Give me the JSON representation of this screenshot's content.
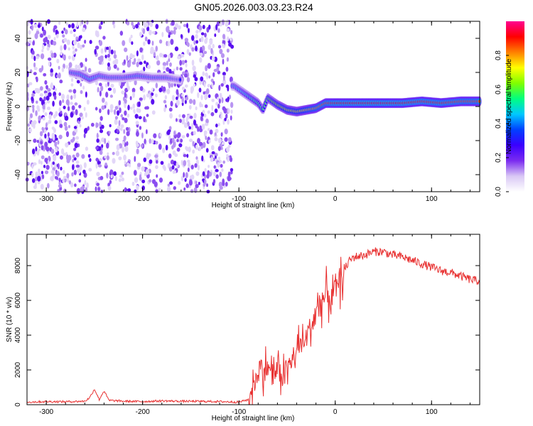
{
  "title": "GN05.2026.003.03.23.R24",
  "chart_data": [
    {
      "type": "heatmap",
      "xlabel": "Height of straight line (km)",
      "ylabel": "Frequency (Hz)",
      "xlim": [
        -320,
        150
      ],
      "ylim": [
        -50,
        50
      ],
      "x_ticks": [
        -300,
        -200,
        -100,
        0,
        100
      ],
      "y_ticks": [
        -40,
        -20,
        0,
        20,
        40
      ],
      "colorbar": {
        "label": "Normalized spectral amplitude",
        "range": [
          0,
          1
        ],
        "ticks": [
          "0.0",
          "0.2",
          "0.4",
          "0.6",
          "0.8"
        ],
        "colormap": [
          "#ffffff",
          "#d9c8f5",
          "#7b2cf0",
          "#3a00ff",
          "#0040ff",
          "#00c8ff",
          "#00ff80",
          "#80ff00",
          "#ffff00",
          "#ff8000",
          "#ff0000",
          "#ff0090"
        ]
      },
      "ridge": {
        "x": [
          -275,
          -265,
          -255,
          -245,
          -235,
          -220,
          -205,
          -190,
          -175,
          -165,
          -105,
          -100,
          -90,
          -80,
          -75,
          -70,
          -60,
          -50,
          -40,
          -30,
          -20,
          -10,
          0,
          10,
          30,
          50,
          70,
          90,
          110,
          130,
          150
        ],
        "frequency": [
          20,
          19,
          16,
          18,
          17,
          17,
          18,
          17,
          17,
          16,
          12,
          10,
          6,
          2,
          -2,
          5,
          1,
          -2,
          -3,
          -2,
          -1,
          2,
          2,
          2,
          2,
          2,
          2,
          3,
          2,
          3,
          3
        ],
        "amplitude": [
          0.35,
          0.4,
          0.45,
          0.4,
          0.35,
          0.35,
          0.4,
          0.35,
          0.35,
          0.3,
          0.4,
          0.45,
          0.5,
          0.55,
          0.55,
          0.6,
          0.65,
          0.7,
          0.7,
          0.75,
          0.8,
          0.85,
          0.9,
          0.9,
          0.92,
          0.92,
          0.9,
          0.88,
          0.88,
          0.85,
          0.85
        ]
      },
      "noise_region_x": [
        -320,
        -107
      ]
    },
    {
      "type": "line",
      "xlabel": "Height of straight line (km)",
      "ylabel": "SNR (10 * v/v)",
      "xlim": [
        -320,
        150
      ],
      "ylim": [
        0,
        9800
      ],
      "x_ticks": [
        -300,
        -200,
        -100,
        0,
        100
      ],
      "y_ticks": [
        0,
        2000,
        4000,
        6000,
        8000
      ],
      "series": [
        {
          "color": "#e83030",
          "x": [
            -320,
            -300,
            -280,
            -260,
            -255,
            -250,
            -245,
            -240,
            -235,
            -220,
            -200,
            -180,
            -160,
            -140,
            -120,
            -100,
            -90,
            -85,
            -80,
            -75,
            -70,
            -65,
            -60,
            -55,
            -50,
            -45,
            -40,
            -35,
            -30,
            -25,
            -20,
            -15,
            -10,
            -5,
            0,
            5,
            10,
            15,
            20,
            30,
            40,
            50,
            60,
            70,
            80,
            90,
            100,
            110,
            120,
            130,
            140,
            150
          ],
          "y": [
            150,
            180,
            170,
            200,
            400,
            900,
            300,
            800,
            250,
            200,
            180,
            220,
            200,
            190,
            180,
            150,
            300,
            1200,
            1800,
            2000,
            2200,
            1900,
            2000,
            1800,
            2200,
            2400,
            3200,
            3500,
            3800,
            4500,
            5500,
            6000,
            6200,
            6300,
            6500,
            7000,
            7800,
            8300,
            8500,
            8600,
            8800,
            8800,
            8600,
            8500,
            8300,
            8100,
            7900,
            7700,
            7600,
            7400,
            7200,
            7100
          ]
        }
      ]
    }
  ]
}
